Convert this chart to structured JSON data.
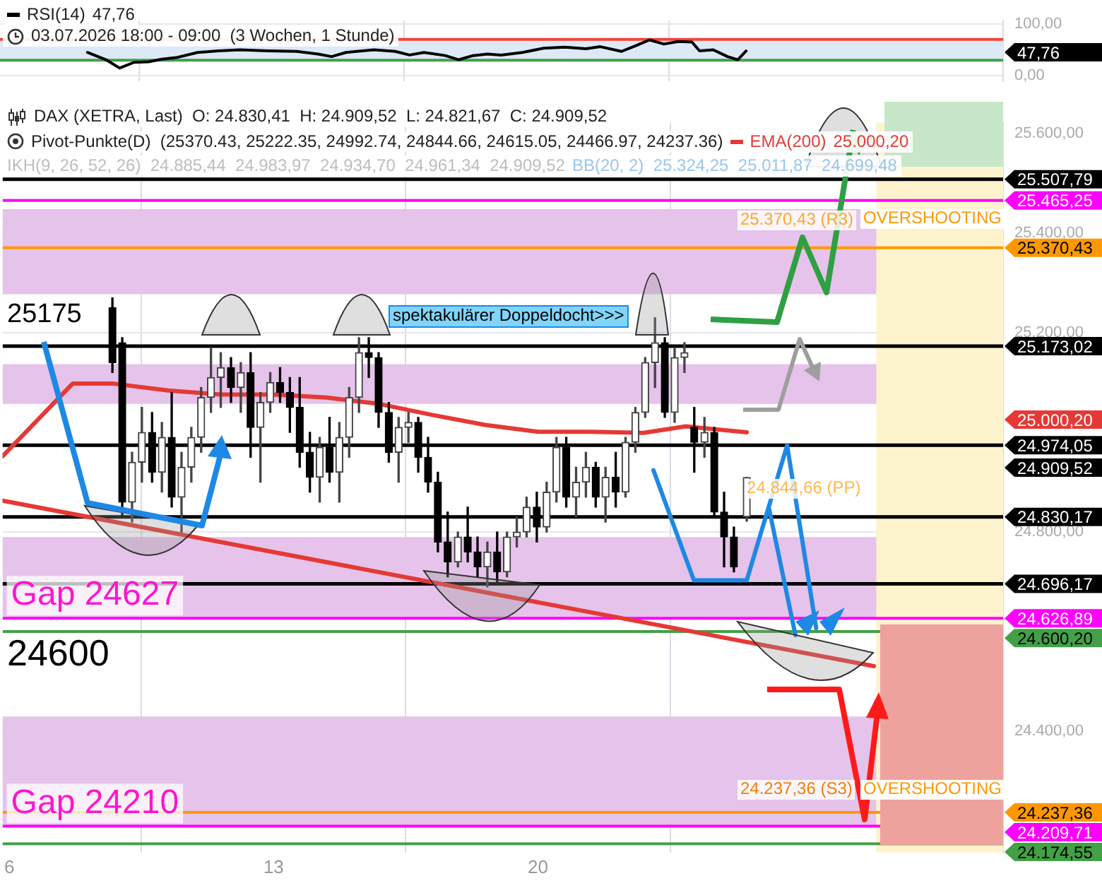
{
  "chart_data": [
    {
      "type": "line",
      "legend": "top left",
      "grid": true,
      "tick_labels": "y",
      "xlim": [
        5.82,
        32.32
      ],
      "ylim": [
        -10,
        106
      ],
      "xticks": [
        6,
        13,
        20
      ],
      "yticks": [
        {
          "value": 0,
          "label": "0,00"
        },
        {
          "value": 100,
          "label": "100,00"
        }
      ],
      "series": [
        {
          "name": "RSI(14)",
          "color": "#000000",
          "x": [
            8.13,
            8.62,
            8.98,
            9.36,
            9.74,
            10.1,
            10.48,
            11.04,
            11.6,
            12.16,
            12.9,
            13.66,
            14.22,
            14.58,
            14.96,
            15.7,
            16.26,
            16.64,
            17.02,
            17.58,
            17.94,
            18.32,
            18.7,
            19.06,
            19.62,
            20.18,
            20.74,
            21.3,
            21.68,
            22.24,
            22.62,
            22.98,
            23.36,
            23.74,
            24.1,
            24.3,
            24.66,
            25.04,
            25.31,
            25.53
          ],
          "values": [
            45,
            31,
            15,
            26,
            27,
            32,
            35,
            45,
            48,
            50,
            48,
            47,
            42,
            37,
            45,
            50,
            47,
            40,
            45,
            39,
            31,
            39,
            42,
            40,
            45,
            53,
            55,
            52,
            56,
            47,
            58,
            69,
            61,
            66,
            65,
            48,
            50,
            37,
            31,
            47.76
          ],
          "line_style": "solid"
        }
      ],
      "ref_lines": [
        {
          "axis": "y",
          "value": 70,
          "color": "#f44336"
        },
        {
          "axis": "y",
          "value": 30,
          "color": "#43a047"
        }
      ],
      "bands": [
        {
          "axis": "y",
          "from": 30,
          "to": 70,
          "color": "#dde9f7"
        }
      ],
      "annotations": [
        "47,76",
        "03.07.2026 18:00 - 09:00  (3 Wochen, 1 Stunde)",
        "47,76"
      ]
    },
    {
      "type": "candlestick",
      "legend": "top",
      "grid": true,
      "xlim": [
        5.82,
        32.32
      ],
      "ylim": [
        24157,
        25622
      ],
      "xticks": [
        6,
        13,
        20
      ],
      "yticks": [
        {
          "value": 24400,
          "label": "24.400,00"
        },
        {
          "value": 24800,
          "label": "24.800,00"
        },
        {
          "value": 25200,
          "label": "25.200,00"
        },
        {
          "value": 25400,
          "label": "25.400,00"
        },
        {
          "value": 25600,
          "label": "25.600,00"
        }
      ],
      "x": [
        8.73,
        8.99,
        9.25,
        9.51,
        9.78,
        10.04,
        10.3,
        10.56,
        10.82,
        11.08,
        11.34,
        11.6,
        11.87,
        12.13,
        12.39,
        12.65,
        12.91,
        13.17,
        13.43,
        13.69,
        13.96,
        14.22,
        14.48,
        14.74,
        15.0,
        15.26,
        15.52,
        15.78,
        16.05,
        16.31,
        16.57,
        16.83,
        17.09,
        17.35,
        17.61,
        17.88,
        18.14,
        18.4,
        18.66,
        18.92,
        19.18,
        19.44,
        19.7,
        19.97,
        20.23,
        20.49,
        20.75,
        21.01,
        21.27,
        21.53,
        21.79,
        22.06,
        22.32,
        22.58,
        22.84,
        23.1,
        23.36,
        23.62,
        23.88,
        24.14,
        24.41,
        24.67,
        24.93,
        25.19,
        25.53
      ],
      "ohlc": [
        [
          25250,
          25270,
          25120,
          25140
        ],
        [
          25180,
          25190,
          24830,
          24860
        ],
        [
          24860,
          24960,
          24820,
          24940
        ],
        [
          24940,
          25050,
          24900,
          25000
        ],
        [
          25000,
          25040,
          24900,
          24920
        ],
        [
          24920,
          25020,
          24880,
          24990
        ],
        [
          24990,
          25080,
          24850,
          24870
        ],
        [
          24870,
          24960,
          24800,
          24930
        ],
        [
          24930,
          25010,
          24900,
          24990
        ],
        [
          24990,
          25090,
          24960,
          25070
        ],
        [
          25070,
          25170,
          25040,
          25110
        ],
        [
          25110,
          25160,
          25050,
          25130
        ],
        [
          25130,
          25150,
          25060,
          25090
        ],
        [
          25090,
          25140,
          25040,
          25120
        ],
        [
          25120,
          25160,
          24950,
          25010
        ],
        [
          25010,
          25080,
          24900,
          25060
        ],
        [
          25060,
          25120,
          25040,
          25100
        ],
        [
          25100,
          25130,
          25060,
          25080
        ],
        [
          25080,
          25110,
          25000,
          25050
        ],
        [
          25050,
          25110,
          24930,
          24960
        ],
        [
          24960,
          25000,
          24880,
          24910
        ],
        [
          24910,
          24990,
          24860,
          24970
        ],
        [
          24970,
          25030,
          24900,
          24920
        ],
        [
          24920,
          25020,
          24860,
          24990
        ],
        [
          24990,
          25090,
          24950,
          25070
        ],
        [
          25070,
          25190,
          25040,
          25160
        ],
        [
          25160,
          25190,
          25110,
          25150
        ],
        [
          25150,
          25160,
          25010,
          25040
        ],
        [
          25040,
          25060,
          24940,
          24960
        ],
        [
          24960,
          25030,
          24900,
          25010
        ],
        [
          25010,
          25040,
          24980,
          25020
        ],
        [
          25020,
          25030,
          24920,
          24950
        ],
        [
          24950,
          24990,
          24880,
          24900
        ],
        [
          24900,
          24920,
          24760,
          24780
        ],
        [
          24780,
          24840,
          24710,
          24740
        ],
        [
          24740,
          24800,
          24730,
          24790
        ],
        [
          24790,
          24850,
          24740,
          24760
        ],
        [
          24760,
          24790,
          24710,
          24730
        ],
        [
          24730,
          24780,
          24690,
          24760
        ],
        [
          24760,
          24800,
          24700,
          24720
        ],
        [
          24720,
          24800,
          24710,
          24790
        ],
        [
          24790,
          24830,
          24770,
          24800
        ],
        [
          24800,
          24870,
          24790,
          24850
        ],
        [
          24850,
          24880,
          24780,
          24810
        ],
        [
          24810,
          24900,
          24800,
          24880
        ],
        [
          24880,
          24990,
          24860,
          24970
        ],
        [
          24970,
          24990,
          24850,
          24870
        ],
        [
          24870,
          24930,
          24830,
          24900
        ],
        [
          24900,
          24960,
          24870,
          24930
        ],
        [
          24930,
          24940,
          24850,
          24870
        ],
        [
          24870,
          24930,
          24820,
          24910
        ],
        [
          24910,
          24960,
          24850,
          24880
        ],
        [
          24880,
          24990,
          24870,
          24980
        ],
        [
          24980,
          25050,
          24960,
          25040
        ],
        [
          25040,
          25150,
          25030,
          25140
        ],
        [
          25140,
          25230,
          25090,
          25180
        ],
        [
          25180,
          25190,
          25030,
          25040
        ],
        [
          25040,
          25170,
          25020,
          25150
        ],
        [
          25150,
          25180,
          25120,
          25160
        ],
        [
          25010,
          25050,
          24920,
          24980
        ],
        [
          24980,
          25030,
          24950,
          25000
        ],
        [
          25000,
          25010,
          24830,
          24840
        ],
        [
          24840,
          24880,
          24730,
          24790
        ],
        [
          24790,
          24810,
          24720,
          24730
        ],
        [
          24830.41,
          24909.52,
          24821.67,
          24909.52
        ]
      ],
      "series": [
        {
          "name": "EMA(200)",
          "type": "line",
          "color": "#e53935",
          "x": [
            5.82,
            7.68,
            8.73,
            10.2,
            11.6,
            13,
            14.4,
            15.8,
            17.2,
            18.6,
            20,
            21.4,
            22.8,
            23.92,
            25.53
          ],
          "values": [
            24952,
            25098,
            25098,
            25084,
            25076,
            25076,
            25070,
            25057,
            25035,
            25015,
            25001,
            25001,
            24999,
            25012,
            25000
          ]
        },
        {
          "type": "line",
          "color": "#e53935",
          "x": [
            5.82,
            28.9
          ],
          "values": [
            24863,
            24531
          ]
        },
        {
          "type": "line",
          "color": "#1e88e5",
          "x": [
            23.06,
            24.13,
            25.53,
            26.6,
            27.37
          ],
          "values": [
            24924,
            24703,
            24703,
            24974,
            24607
          ]
        },
        {
          "type": "line",
          "color": "#1e88e5",
          "x": [
            26.12,
            26.82
          ],
          "values": [
            24847,
            24593
          ]
        }
      ],
      "ref_lines": [
        {
          "axis": "y",
          "value": 25507.79,
          "label": "25.507,79",
          "color": "#000000"
        },
        {
          "axis": "y",
          "value": 25465.25,
          "label": "25.465,25",
          "color": "#ff00ff"
        },
        {
          "axis": "y",
          "value": 25370.43,
          "label": "25.370,43",
          "color": "#ff9800"
        },
        {
          "axis": "y",
          "value": 25173.02,
          "label": "25.173,02",
          "color": "#000000"
        },
        {
          "axis": "y",
          "value": 24974.05,
          "label": "24.974,05",
          "color": "#000000"
        },
        {
          "axis": "y",
          "value": 24830.17,
          "label": "24.830,17",
          "color": "#000000"
        },
        {
          "axis": "y",
          "value": 24696.17,
          "label": "24.696,17",
          "color": "#000000"
        },
        {
          "axis": "y",
          "value": 24626.89,
          "label": "24.626,89",
          "color": "#ff00ff"
        },
        {
          "axis": "y",
          "value": 24600.2,
          "label": "24.600,20",
          "color": "#43a047"
        },
        {
          "axis": "y",
          "value": 24237.36,
          "label": "24.237,36",
          "color": "#ff9800"
        },
        {
          "axis": "y",
          "value": 24209.71,
          "label": "24.209,71",
          "color": "#ff00ff"
        },
        {
          "axis": "y",
          "value": 24174.55,
          "label": "24.174,55",
          "color": "#43a047"
        }
      ],
      "bands": [
        {
          "axis": "y",
          "from": 25277,
          "to": 25448,
          "color": "#e6c3ea"
        },
        {
          "axis": "y",
          "from": 25057,
          "to": 25137,
          "color": "#e6c3ea"
        },
        {
          "axis": "y",
          "from": 24627,
          "to": 24790,
          "label": "Gap 24627",
          "color": "#e6c3ea"
        },
        {
          "axis": "y",
          "from": 24210,
          "to": 24430,
          "label": "Gap 24210",
          "color": "#e6c3ea"
        },
        {
          "axis": "x",
          "from": 28.96,
          "to": 32.32,
          "color": "#fdf3cc"
        }
      ],
      "annotations": [
        "DAX (XETRA, Last)  O: 24.830,41  H: 24.909,52  L: 24.821,67  C: 24.909,52",
        "Pivot-Punkte(D)  (25370.43, 25222.35, 24992.74, 24844.66, 24615.05, 24466.97, 24237.36)",
        "25.000,20",
        "IKH(9, 26, 52, 26)  24.885,44  24.983,97  24.934,70  24.961,34  24.909,52",
        "BB(20, 2)  25.324,25  25.011,87  24.699,48",
        "25175",
        "24600",
        "spektakulärer Doppeldocht>>>",
        "25.370,43 (R3)",
        "OVERSHOOTING",
        "24.237,36 (S3)",
        "OVERSHOOTING",
        "25.000,20",
        "24.909,52",
        {
          "text": "24.844,66 (PP)",
          "x": 25.53,
          "y": 24844.66
        }
      ]
    }
  ]
}
